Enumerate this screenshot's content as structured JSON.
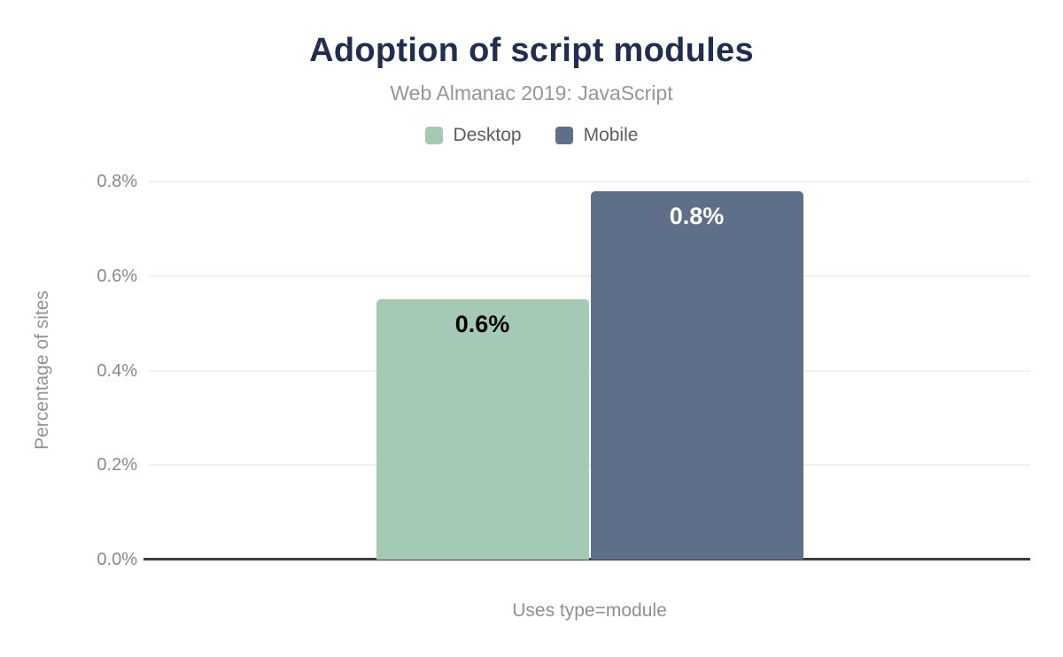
{
  "chart_data": {
    "type": "bar",
    "title": "Adoption of script modules",
    "subtitle": "Web Almanac 2019: JavaScript",
    "categories": [
      "Uses type=module"
    ],
    "series": [
      {
        "name": "Desktop",
        "values": [
          0.55
        ],
        "display_label": "0.6%",
        "color": "#a4c9b5",
        "label_color": "#000000"
      },
      {
        "name": "Mobile",
        "values": [
          0.78
        ],
        "display_label": "0.8%",
        "color": "#5e7089",
        "label_color": "#ffffff"
      }
    ],
    "xlabel": "Uses type=module",
    "ylabel": "Percentage of sites",
    "ylim": [
      0,
      0.8
    ],
    "yticks": [
      0.8,
      0.6,
      0.4,
      0.2,
      0.0
    ],
    "ytick_labels": [
      "0.8%",
      "0.6%",
      "0.4%",
      "0.2%",
      "0.0%"
    ],
    "grid": true,
    "legend_position": "top",
    "value_labels_inside_bars": true
  },
  "colors": {
    "background": "#ffffff",
    "title": "#202f4f",
    "subtitle": "#92979c",
    "axis_text": "#85898e",
    "legend_text": "#5a5e63",
    "gridline": "#f0f1f2",
    "baseline": "#3b3d42"
  }
}
